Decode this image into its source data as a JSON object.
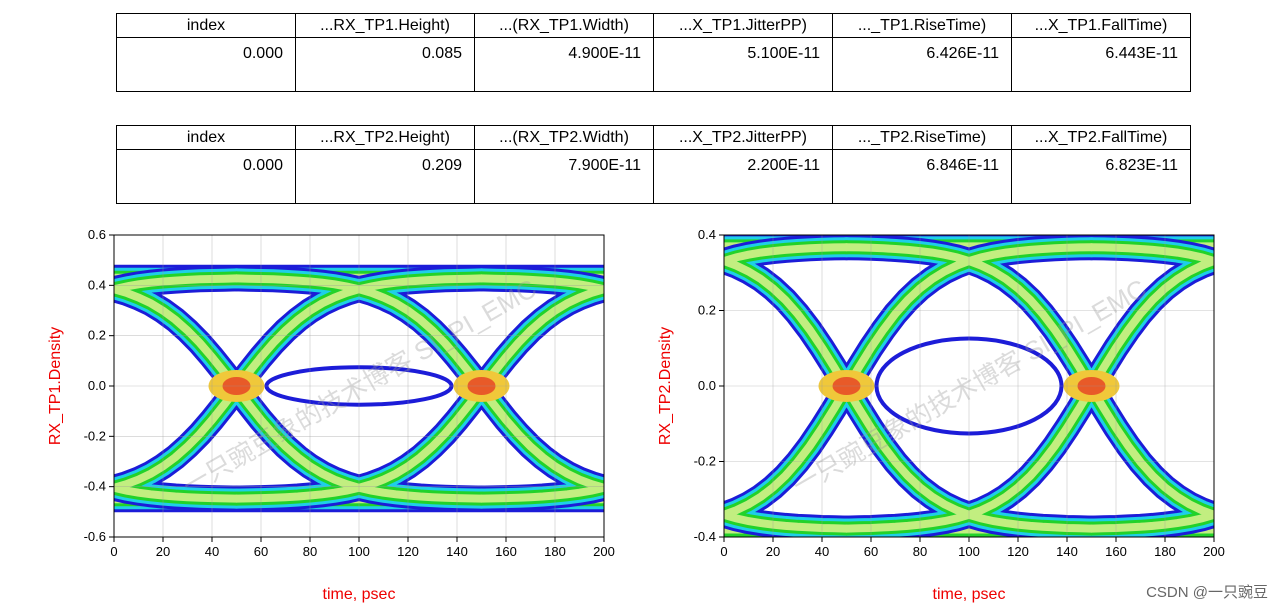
{
  "tables": [
    {
      "headers": [
        "index",
        "...RX_TP1.Height)",
        "...(RX_TP1.Width)",
        "...X_TP1.JitterPP)",
        "..._TP1.RiseTime)",
        "...X_TP1.FallTime)"
      ],
      "rows": [
        [
          "0.000",
          "0.085",
          "4.900E-11",
          "5.100E-11",
          "6.426E-11",
          "6.443E-11"
        ]
      ]
    },
    {
      "headers": [
        "index",
        "...RX_TP2.Height)",
        "...(RX_TP2.Width)",
        "...X_TP2.JitterPP)",
        "..._TP2.RiseTime)",
        "...X_TP2.FallTime)"
      ],
      "rows": [
        [
          "0.000",
          "0.209",
          "7.900E-11",
          "2.200E-11",
          "6.846E-11",
          "6.823E-11"
        ]
      ]
    }
  ],
  "chart_data": [
    {
      "type": "heatmap",
      "title": "",
      "xlabel": "time, psec",
      "ylabel": "RX_TP1.Density",
      "xlim": [
        0,
        200
      ],
      "ylim": [
        -0.6,
        0.6
      ],
      "xticks": [
        0,
        20,
        40,
        60,
        80,
        100,
        120,
        140,
        160,
        180,
        200
      ],
      "yticks": [
        -0.6,
        -0.4,
        -0.2,
        0.0,
        0.2,
        0.4,
        0.6
      ],
      "ytick_labels": [
        "-0.6",
        "-0.4",
        "-0.2",
        "0.0",
        "0.2",
        "0.4",
        "0.6"
      ],
      "grid": true,
      "eye": {
        "rail_high": 0.43,
        "rail_low": -0.45,
        "crossing_times": [
          50,
          150
        ],
        "crossing_level": 0.0,
        "eye_height": 0.085
      }
    },
    {
      "type": "heatmap",
      "title": "",
      "xlabel": "time, psec",
      "ylabel": "RX_TP2.Density",
      "xlim": [
        0,
        200
      ],
      "ylim": [
        -0.4,
        0.4
      ],
      "xticks": [
        0,
        20,
        40,
        60,
        80,
        100,
        120,
        140,
        160,
        180,
        200
      ],
      "yticks": [
        -0.4,
        -0.2,
        0.0,
        0.2,
        0.4
      ],
      "ytick_labels": [
        "-0.4",
        "-0.2",
        "0.0",
        "0.2",
        "0.4"
      ],
      "grid": true,
      "eye": {
        "rail_high": 0.37,
        "rail_low": -0.38,
        "crossing_times": [
          50,
          150
        ],
        "crossing_level": 0.0,
        "eye_height": 0.209
      }
    }
  ],
  "watermark": "一只豌豆象的技术博客 SI_PI_EMC",
  "footer": "CSDN @一只豌豆",
  "colors": {
    "density_low": "#1c1cd8",
    "density_mid_low": "#1ecfe8",
    "density_mid": "#22d22a",
    "density_mid_high": "#c2ee80",
    "density_high": "#f0c83a",
    "density_peak": "#e85a28",
    "axis_label": "#ee0000",
    "grid": "#9a9a9a"
  }
}
